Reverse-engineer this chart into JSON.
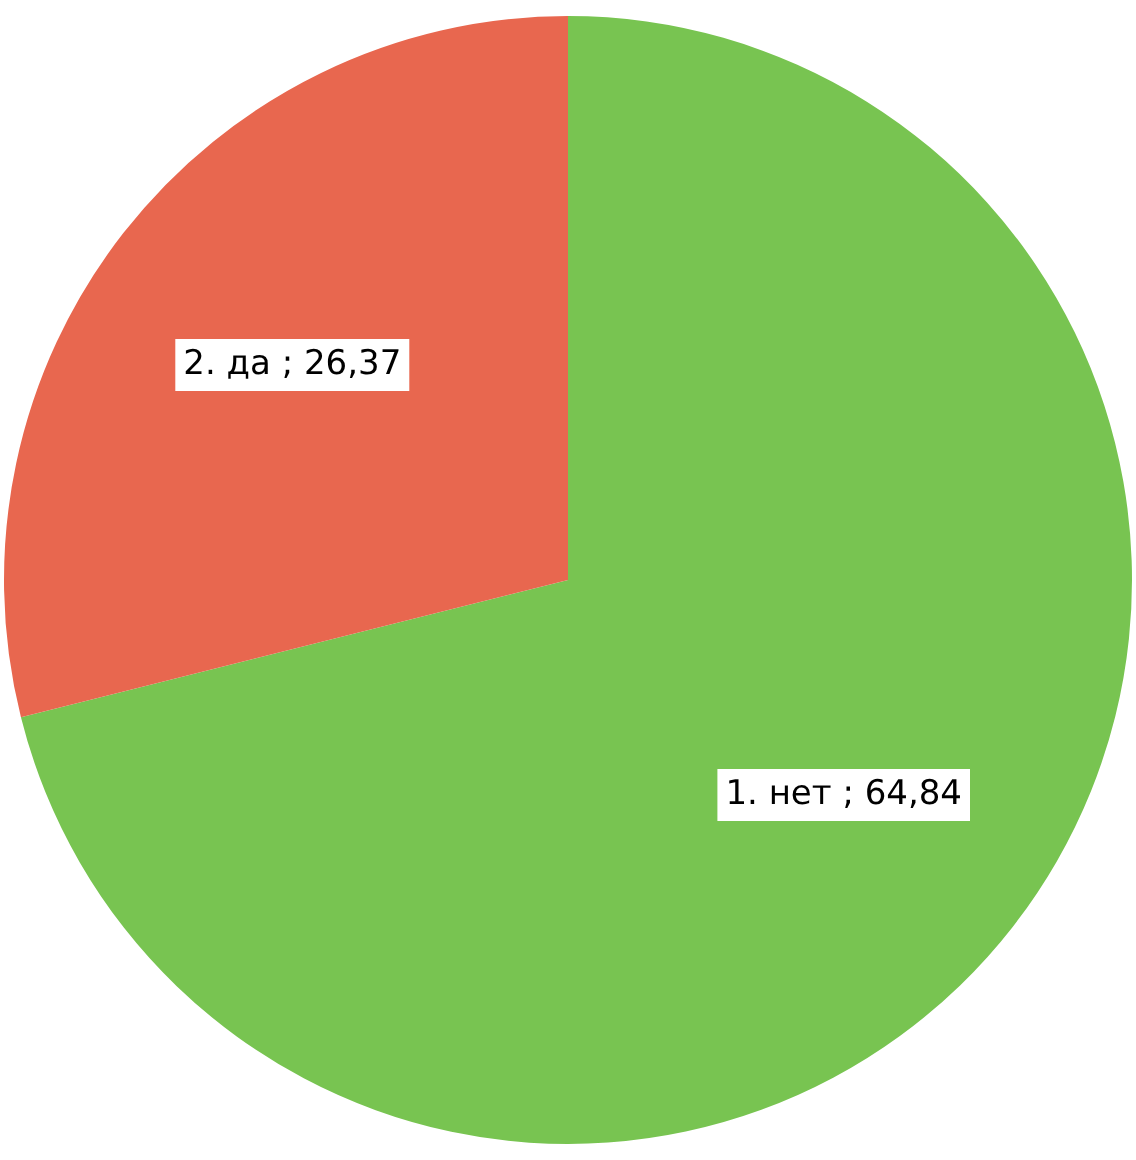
{
  "chart_data": {
    "type": "pie",
    "categories": [
      "1. нет",
      "2. да"
    ],
    "values": [
      64.84,
      26.37
    ],
    "colors": [
      "#78c451",
      "#e8674f"
    ],
    "value_labels": [
      "64,84",
      "26,37"
    ],
    "legend": false
  }
}
